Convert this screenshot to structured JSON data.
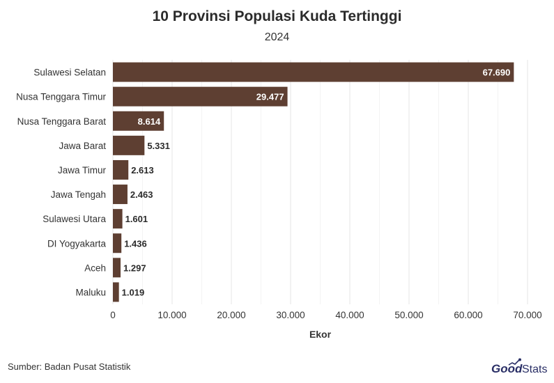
{
  "title": "10 Provinsi Populasi Kuda Tertinggi",
  "subtitle": "2024",
  "source": "Sumber: Badan Pusat Statistik",
  "logo": {
    "part1": "Good",
    "part2": "Stats"
  },
  "colors": {
    "bar": "#5e3f32",
    "grid": "#e6e6e6",
    "label_inside": "#ffffff",
    "label_outside": "#2b2b2b",
    "logo": "#2a2f66"
  },
  "chart_data": {
    "type": "bar",
    "orientation": "horizontal",
    "categories": [
      "Sulawesi Selatan",
      "Nusa Tenggara Timur",
      "Nusa Tenggara Barat",
      "Jawa Barat",
      "Jawa Timur",
      "Jawa Tengah",
      "Sulawesi Utara",
      "DI Yogyakarta",
      "Aceh",
      "Maluku"
    ],
    "values": [
      67690,
      29477,
      8614,
      5331,
      2613,
      2463,
      1601,
      1436,
      1297,
      1019
    ],
    "value_labels": [
      "67.690",
      "29.477",
      "8.614",
      "5.331",
      "2.613",
      "2.463",
      "1.601",
      "1.436",
      "1.297",
      "1.019"
    ],
    "xlabel": "Ekor",
    "xlim": [
      0,
      70000
    ],
    "xticks": [
      0,
      10000,
      20000,
      30000,
      40000,
      50000,
      60000,
      70000
    ],
    "xtick_labels": [
      "0",
      "10.000",
      "20.000",
      "30.000",
      "40.000",
      "50.000",
      "60.000",
      "70.000"
    ],
    "grid": true,
    "legend": "none"
  }
}
